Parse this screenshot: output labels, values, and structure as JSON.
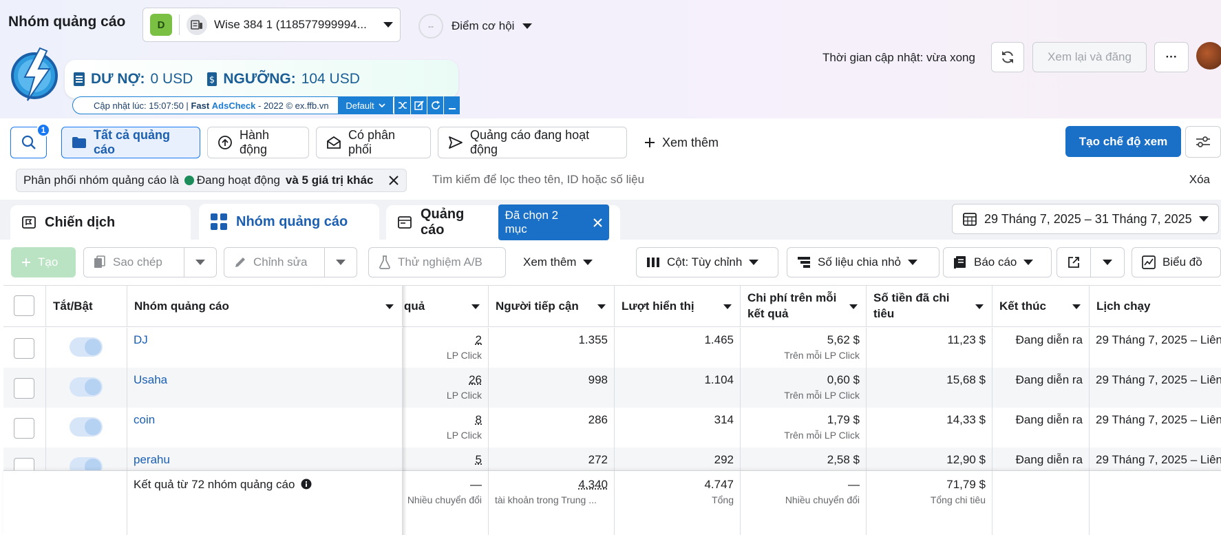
{
  "header": {
    "title": "Nhóm quảng cáo",
    "account_badge": "D",
    "account_name": "Wise 384 1 (118577999994...",
    "opportunity_score": "--",
    "opportunity_label": "Điểm cơ hội",
    "updated": "Thời gian cập nhật: vừa xong",
    "review_publish": "Xem lại và đăng",
    "more": "···"
  },
  "extension": {
    "debt_label": "DƯ NỢ:",
    "debt_value": "0 USD",
    "threshold_label": "NGƯỠNG:",
    "threshold_value": "104 USD",
    "update_prefix": "Cập nhật lúc: 15:07:50 |",
    "brand_fast": "Fast",
    "brand_ads": "AdsCheck",
    "copyright": "- 2022 © ex.ffb.vn",
    "profile": "Default"
  },
  "toolbar": {
    "search_badge": "1",
    "all_ads": "Tất cả quảng cáo",
    "actions": "Hành động",
    "delivered": "Có phân phối",
    "active_ads": "Quảng cáo đang hoạt động",
    "see_more": "Xem thêm",
    "create_view": "Tạo chế độ xem"
  },
  "filter": {
    "chip_prefix": "Phân phối nhóm quảng cáo là",
    "chip_status": "Đang hoạt động",
    "chip_more": "và 5 giá trị khác",
    "search_placeholder": "Tìm kiếm để lọc theo tên, ID hoặc số liệu",
    "clear": "Xóa"
  },
  "tabs": {
    "campaigns": "Chiến dịch",
    "adsets": "Nhóm quảng cáo",
    "ads": "Quảng cáo",
    "selected": "Đã chọn 2 mục",
    "date_range": "29 Tháng 7, 2025 – 31 Tháng 7, 2025"
  },
  "actions": {
    "create": "Tạo",
    "duplicate": "Sao chép",
    "edit": "Chỉnh sửa",
    "ab_test": "Thử nghiệm A/B",
    "see_more": "Xem thêm",
    "columns": "Cột: Tùy chỉnh",
    "breakdown": "Số liệu chia nhỏ",
    "reports": "Báo cáo",
    "chart": "Biểu đồ"
  },
  "table": {
    "headers": {
      "toggle": "Tắt/Bật",
      "name": "Nhóm quảng cáo",
      "results": "quả",
      "reach": "Người tiếp cận",
      "impressions": "Lượt hiển thị",
      "cpr": "Chi phí trên mỗi kết quả",
      "spent": "Số tiền đã chi tiêu",
      "ends": "Kết thúc",
      "schedule": "Lịch chạy"
    },
    "rows": [
      {
        "name": "DJ",
        "results": "2",
        "results_sub": "LP Click",
        "reach": "1.355",
        "impressions": "1.465",
        "cpr": "5,62 $",
        "cpr_sub": "Trên mỗi LP Click",
        "spent": "11,23 $",
        "ends": "Đang diễn ra",
        "schedule": "29 Tháng 7, 2025 – Liên"
      },
      {
        "name": "Usaha",
        "results": "26",
        "results_sub": "LP Click",
        "reach": "998",
        "impressions": "1.104",
        "cpr": "0,60 $",
        "cpr_sub": "Trên mỗi LP Click",
        "spent": "15,68 $",
        "ends": "Đang diễn ra",
        "schedule": "29 Tháng 7, 2025 – Liên"
      },
      {
        "name": "coin",
        "results": "8",
        "results_sub": "LP Click",
        "reach": "286",
        "impressions": "314",
        "cpr": "1,79 $",
        "cpr_sub": "Trên mỗi LP Click",
        "spent": "14,33 $",
        "ends": "Đang diễn ra",
        "schedule": "29 Tháng 7, 2025 – Liên"
      },
      {
        "name": "perahu",
        "results": "5",
        "results_sub": "",
        "reach": "272",
        "impressions": "292",
        "cpr": "2,58 $",
        "cpr_sub": "",
        "spent": "12,90 $",
        "ends": "Đang diễn ra",
        "schedule": "29 Tháng 7, 2025 – Liên"
      }
    ],
    "footer": {
      "label": "Kết quả từ 72 nhóm quảng cáo",
      "results": "—",
      "results_sub": "Nhiều chuyển đổi",
      "reach": "4.340",
      "reach_sub": "tài khoản trong Trung ...",
      "impressions": "4.747",
      "impressions_sub": "Tổng",
      "cpr": "—",
      "cpr_sub": "Nhiều chuyển đổi",
      "spent": "71,79 $",
      "spent_sub": "Tổng chi tiêu"
    }
  }
}
